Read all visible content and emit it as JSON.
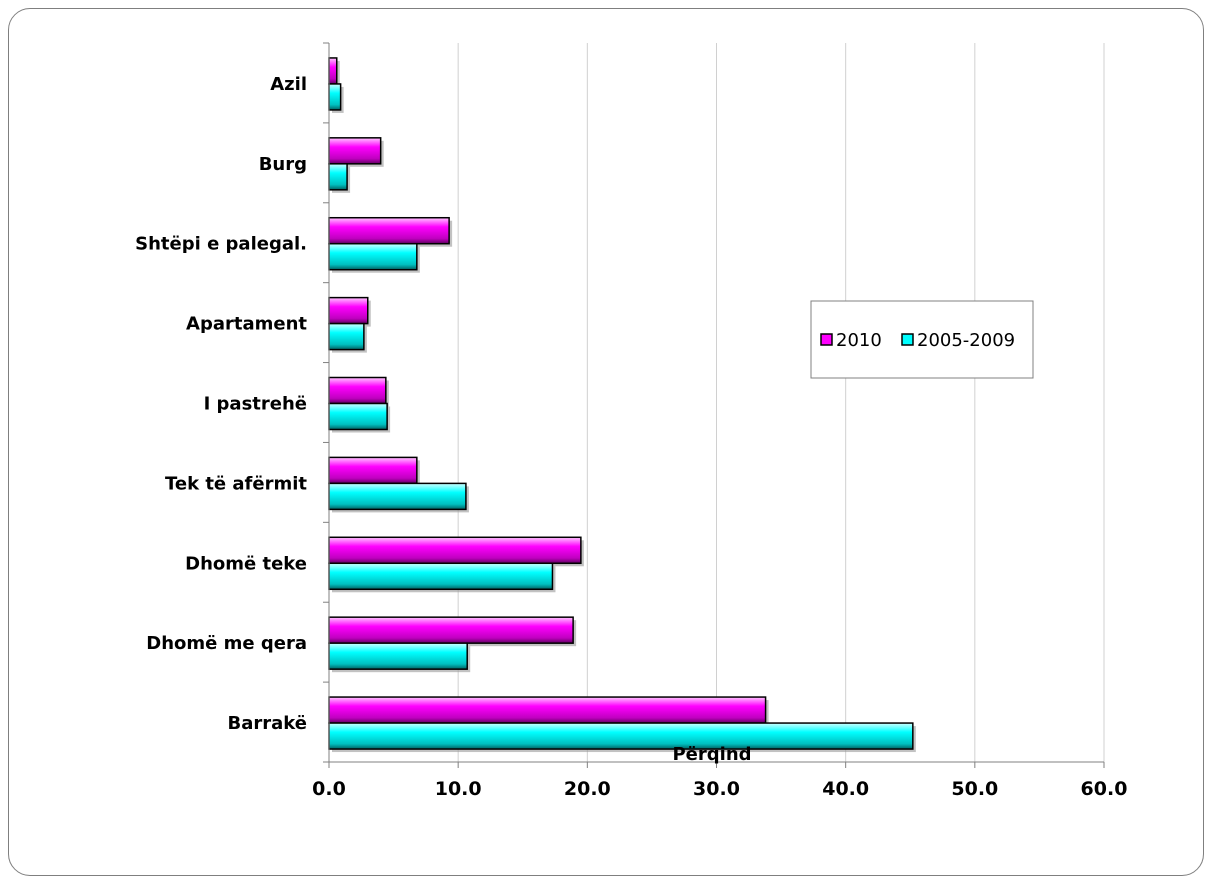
{
  "chart_data": {
    "type": "bar",
    "orientation": "horizontal",
    "categories": [
      "Azil",
      "Burg",
      "Shtëpi e palegal.",
      "Apartament",
      "I pastrehë",
      "Tek të afërmit",
      "Dhomë teke",
      "Dhomë me qera",
      "Barrakë"
    ],
    "series": [
      {
        "name": "2010",
        "color": "#ff00ff",
        "values": [
          0.6,
          4.0,
          9.3,
          3.0,
          4.4,
          6.8,
          19.5,
          18.9,
          33.8
        ]
      },
      {
        "name": "2005-2009",
        "color": "#00ffff",
        "values": [
          0.9,
          1.4,
          6.8,
          2.7,
          4.5,
          10.6,
          17.3,
          10.7,
          45.2
        ]
      }
    ],
    "xlabel": "Përqind",
    "ylabel": "",
    "xlim": [
      0,
      60
    ],
    "xticks": [
      "0.0",
      "10.0",
      "20.0",
      "30.0",
      "40.0",
      "50.0",
      "60.0"
    ],
    "grid": "vertical",
    "legend": "right"
  }
}
